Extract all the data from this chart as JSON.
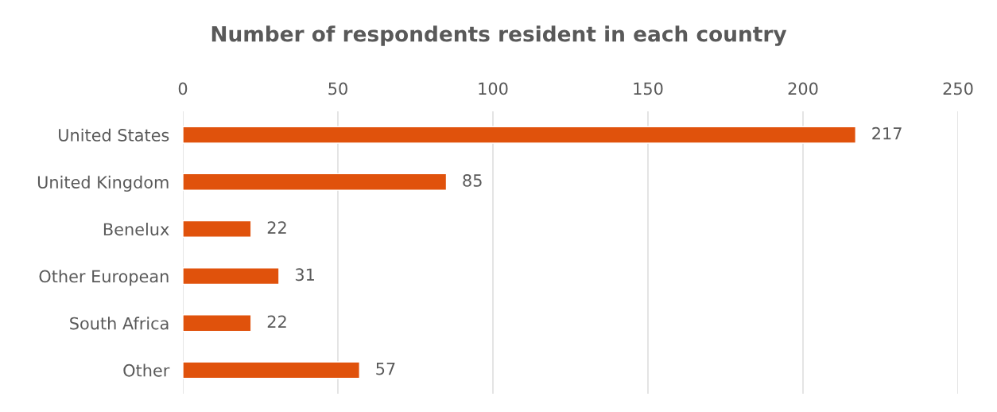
{
  "chart_data": {
    "type": "bar",
    "orientation": "horizontal",
    "title": "Number of respondents resident in each country",
    "categories": [
      "United States",
      "United Kingdom",
      "Benelux",
      "Other European",
      "South Africa",
      "Other"
    ],
    "values": [
      217,
      85,
      22,
      31,
      22,
      57
    ],
    "color": "#e0520c",
    "xlim": [
      0,
      250
    ],
    "xticks": [
      0,
      50,
      100,
      150,
      200,
      250
    ],
    "grid": "x",
    "data_labels": true
  }
}
